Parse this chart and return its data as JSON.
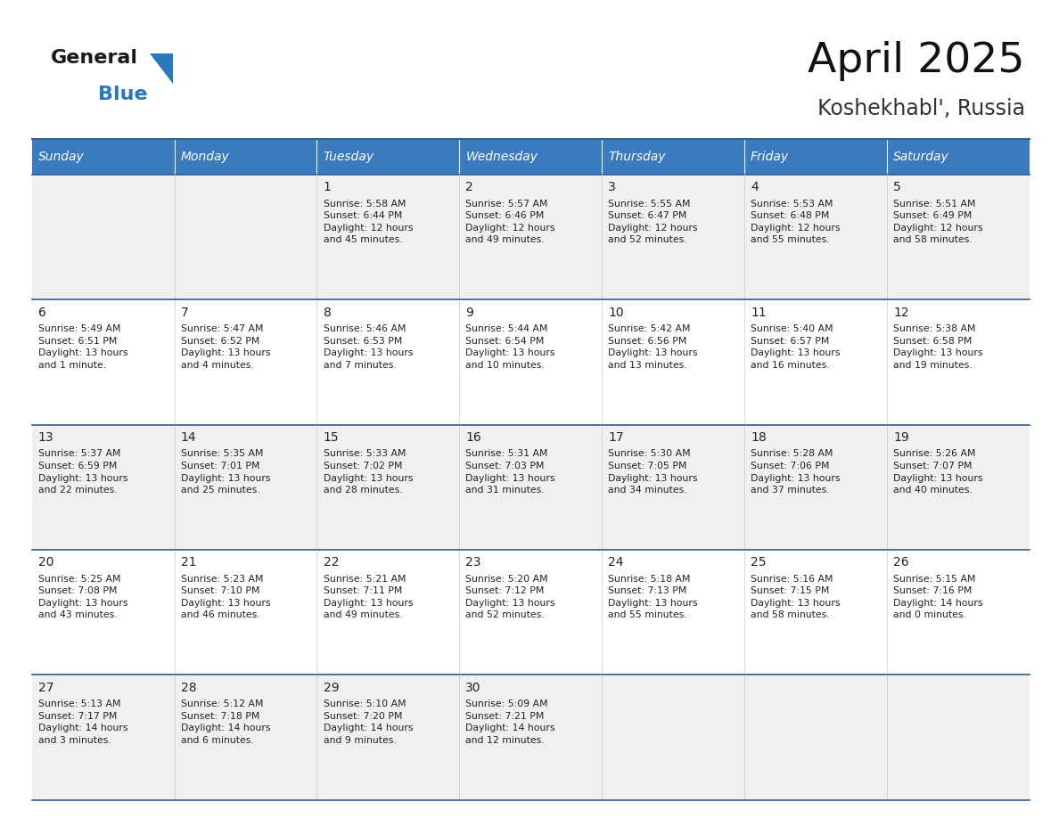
{
  "title": "April 2025",
  "subtitle": "Koshekhabl', Russia",
  "days_of_week": [
    "Sunday",
    "Monday",
    "Tuesday",
    "Wednesday",
    "Thursday",
    "Friday",
    "Saturday"
  ],
  "header_bg": "#3a7bbf",
  "header_text": "#ffffff",
  "row_bg_odd": "#f0f0f0",
  "row_bg_even": "#ffffff",
  "border_color": "#2e5f8a",
  "text_color": "#222222",
  "weeks": [
    [
      {
        "day": null,
        "info": null
      },
      {
        "day": null,
        "info": null
      },
      {
        "day": 1,
        "info": "Sunrise: 5:58 AM\nSunset: 6:44 PM\nDaylight: 12 hours\nand 45 minutes."
      },
      {
        "day": 2,
        "info": "Sunrise: 5:57 AM\nSunset: 6:46 PM\nDaylight: 12 hours\nand 49 minutes."
      },
      {
        "day": 3,
        "info": "Sunrise: 5:55 AM\nSunset: 6:47 PM\nDaylight: 12 hours\nand 52 minutes."
      },
      {
        "day": 4,
        "info": "Sunrise: 5:53 AM\nSunset: 6:48 PM\nDaylight: 12 hours\nand 55 minutes."
      },
      {
        "day": 5,
        "info": "Sunrise: 5:51 AM\nSunset: 6:49 PM\nDaylight: 12 hours\nand 58 minutes."
      }
    ],
    [
      {
        "day": 6,
        "info": "Sunrise: 5:49 AM\nSunset: 6:51 PM\nDaylight: 13 hours\nand 1 minute."
      },
      {
        "day": 7,
        "info": "Sunrise: 5:47 AM\nSunset: 6:52 PM\nDaylight: 13 hours\nand 4 minutes."
      },
      {
        "day": 8,
        "info": "Sunrise: 5:46 AM\nSunset: 6:53 PM\nDaylight: 13 hours\nand 7 minutes."
      },
      {
        "day": 9,
        "info": "Sunrise: 5:44 AM\nSunset: 6:54 PM\nDaylight: 13 hours\nand 10 minutes."
      },
      {
        "day": 10,
        "info": "Sunrise: 5:42 AM\nSunset: 6:56 PM\nDaylight: 13 hours\nand 13 minutes."
      },
      {
        "day": 11,
        "info": "Sunrise: 5:40 AM\nSunset: 6:57 PM\nDaylight: 13 hours\nand 16 minutes."
      },
      {
        "day": 12,
        "info": "Sunrise: 5:38 AM\nSunset: 6:58 PM\nDaylight: 13 hours\nand 19 minutes."
      }
    ],
    [
      {
        "day": 13,
        "info": "Sunrise: 5:37 AM\nSunset: 6:59 PM\nDaylight: 13 hours\nand 22 minutes."
      },
      {
        "day": 14,
        "info": "Sunrise: 5:35 AM\nSunset: 7:01 PM\nDaylight: 13 hours\nand 25 minutes."
      },
      {
        "day": 15,
        "info": "Sunrise: 5:33 AM\nSunset: 7:02 PM\nDaylight: 13 hours\nand 28 minutes."
      },
      {
        "day": 16,
        "info": "Sunrise: 5:31 AM\nSunset: 7:03 PM\nDaylight: 13 hours\nand 31 minutes."
      },
      {
        "day": 17,
        "info": "Sunrise: 5:30 AM\nSunset: 7:05 PM\nDaylight: 13 hours\nand 34 minutes."
      },
      {
        "day": 18,
        "info": "Sunrise: 5:28 AM\nSunset: 7:06 PM\nDaylight: 13 hours\nand 37 minutes."
      },
      {
        "day": 19,
        "info": "Sunrise: 5:26 AM\nSunset: 7:07 PM\nDaylight: 13 hours\nand 40 minutes."
      }
    ],
    [
      {
        "day": 20,
        "info": "Sunrise: 5:25 AM\nSunset: 7:08 PM\nDaylight: 13 hours\nand 43 minutes."
      },
      {
        "day": 21,
        "info": "Sunrise: 5:23 AM\nSunset: 7:10 PM\nDaylight: 13 hours\nand 46 minutes."
      },
      {
        "day": 22,
        "info": "Sunrise: 5:21 AM\nSunset: 7:11 PM\nDaylight: 13 hours\nand 49 minutes."
      },
      {
        "day": 23,
        "info": "Sunrise: 5:20 AM\nSunset: 7:12 PM\nDaylight: 13 hours\nand 52 minutes."
      },
      {
        "day": 24,
        "info": "Sunrise: 5:18 AM\nSunset: 7:13 PM\nDaylight: 13 hours\nand 55 minutes."
      },
      {
        "day": 25,
        "info": "Sunrise: 5:16 AM\nSunset: 7:15 PM\nDaylight: 13 hours\nand 58 minutes."
      },
      {
        "day": 26,
        "info": "Sunrise: 5:15 AM\nSunset: 7:16 PM\nDaylight: 14 hours\nand 0 minutes."
      }
    ],
    [
      {
        "day": 27,
        "info": "Sunrise: 5:13 AM\nSunset: 7:17 PM\nDaylight: 14 hours\nand 3 minutes."
      },
      {
        "day": 28,
        "info": "Sunrise: 5:12 AM\nSunset: 7:18 PM\nDaylight: 14 hours\nand 6 minutes."
      },
      {
        "day": 29,
        "info": "Sunrise: 5:10 AM\nSunset: 7:20 PM\nDaylight: 14 hours\nand 9 minutes."
      },
      {
        "day": 30,
        "info": "Sunrise: 5:09 AM\nSunset: 7:21 PM\nDaylight: 14 hours\nand 12 minutes."
      },
      {
        "day": null,
        "info": null
      },
      {
        "day": null,
        "info": null
      },
      {
        "day": null,
        "info": null
      }
    ]
  ]
}
